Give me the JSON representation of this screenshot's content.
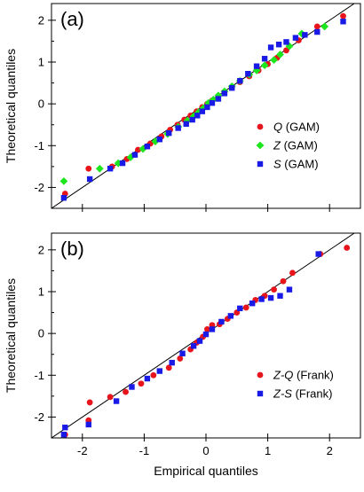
{
  "chart_data": [
    {
      "type": "scatter",
      "panel": "(a)",
      "xlabel": "",
      "ylabel": "Theoretical quantiles",
      "xlim": [
        -2.5,
        2.5
      ],
      "ylim": [
        -2.5,
        2.4
      ],
      "x_ticks": [],
      "y_ticks": [
        "-2",
        "-1",
        "0",
        "1",
        "2"
      ],
      "reference_line": "y = x",
      "legend_position": "lower-right",
      "series": [
        {
          "name": "Q",
          "suffix": " (GAM)",
          "color": "#e8141c",
          "marker": "circle",
          "x": [
            -2.28,
            -1.9,
            -1.52,
            -1.28,
            -1.1,
            -0.9,
            -0.72,
            -0.58,
            -0.46,
            -0.35,
            -0.25,
            -0.15,
            -0.06,
            0.02,
            0.1,
            0.2,
            0.3,
            0.42,
            0.55,
            0.7,
            0.85,
            1.0,
            1.15,
            1.3,
            1.5,
            1.8,
            2.22
          ],
          "y": [
            -2.15,
            -1.55,
            -1.5,
            -1.32,
            -1.1,
            -0.95,
            -0.78,
            -0.62,
            -0.5,
            -0.38,
            -0.28,
            -0.18,
            -0.08,
            0.0,
            0.08,
            0.18,
            0.28,
            0.4,
            0.52,
            0.66,
            0.8,
            0.95,
            1.1,
            1.28,
            1.52,
            1.85,
            2.1
          ]
        },
        {
          "name": "Z",
          "suffix": " (GAM)",
          "color": "#1ee61e",
          "marker": "diamond",
          "x": [
            -2.3,
            -1.72,
            -1.42,
            -1.22,
            -1.02,
            -0.82,
            -0.62,
            -0.45,
            -0.3,
            -0.2,
            -0.12,
            -0.04,
            0.04,
            0.12,
            0.2,
            0.3,
            0.42,
            0.55,
            0.7,
            0.82,
            0.95,
            1.1,
            1.2,
            1.35,
            1.55,
            1.92
          ],
          "y": [
            -1.85,
            -1.55,
            -1.42,
            -1.28,
            -1.08,
            -0.9,
            -0.72,
            -0.55,
            -0.4,
            -0.3,
            -0.2,
            -0.1,
            0.02,
            0.1,
            0.2,
            0.3,
            0.42,
            0.55,
            0.7,
            0.8,
            0.92,
            1.05,
            1.18,
            1.38,
            1.68,
            1.85
          ]
        },
        {
          "name": "S",
          "suffix": " (GAM)",
          "color": "#1a1ae6",
          "marker": "square",
          "x": [
            -2.3,
            -1.88,
            -1.55,
            -1.35,
            -1.15,
            -0.95,
            -0.75,
            -0.6,
            -0.45,
            -0.32,
            -0.22,
            -0.14,
            -0.06,
            0.02,
            0.1,
            0.2,
            0.3,
            0.42,
            0.55,
            0.68,
            0.82,
            0.95,
            1.05,
            1.18,
            1.3,
            1.45,
            1.6,
            1.8,
            2.22
          ],
          "y": [
            -2.25,
            -1.8,
            -1.55,
            -1.42,
            -1.22,
            -1.02,
            -0.85,
            -0.7,
            -0.58,
            -0.48,
            -0.38,
            -0.28,
            -0.18,
            -0.08,
            0.02,
            0.12,
            0.25,
            0.38,
            0.55,
            0.72,
            0.9,
            1.08,
            1.35,
            1.42,
            1.48,
            1.58,
            1.65,
            1.72,
            1.97
          ]
        }
      ]
    },
    {
      "type": "scatter",
      "panel": "(b)",
      "xlabel": "Empirical quantiles",
      "ylabel": "Theoretical quantiles",
      "xlim": [
        -2.5,
        2.5
      ],
      "ylim": [
        -2.5,
        2.4
      ],
      "x_ticks": [
        "-2",
        "-1",
        "0",
        "1",
        "2"
      ],
      "y_ticks": [
        "-2",
        "-1",
        "0",
        "1",
        "2"
      ],
      "reference_line": "y = x",
      "legend_position": "lower-right",
      "series": [
        {
          "name": "Z-Q",
          "suffix": " (Frank)",
          "color": "#e8141c",
          "marker": "circle",
          "x": [
            -2.28,
            -1.9,
            -1.88,
            -1.55,
            -1.3,
            -1.05,
            -0.85,
            -0.6,
            -0.42,
            -0.25,
            -0.15,
            -0.05,
            0.02,
            0.1,
            0.22,
            0.35,
            0.5,
            0.65,
            0.8,
            0.95,
            1.1,
            1.25,
            1.4,
            1.85,
            2.28
          ],
          "y": [
            -2.42,
            -2.08,
            -1.65,
            -1.52,
            -1.4,
            -1.2,
            -1.0,
            -0.82,
            -0.6,
            -0.38,
            -0.22,
            -0.08,
            0.1,
            0.2,
            0.22,
            0.35,
            0.5,
            0.62,
            0.8,
            0.9,
            1.05,
            1.25,
            1.45,
            1.9,
            2.05
          ]
        },
        {
          "name": "Z-S",
          "suffix": " (Frank)",
          "color": "#1a1ae6",
          "marker": "square",
          "x": [
            -2.3,
            -2.28,
            -1.9,
            -1.45,
            -1.2,
            -0.95,
            -0.75,
            -0.55,
            -0.38,
            -0.2,
            -0.1,
            0.0,
            0.1,
            0.25,
            0.4,
            0.55,
            0.75,
            0.9,
            1.05,
            1.2,
            1.35,
            1.82
          ],
          "y": [
            -2.42,
            -2.25,
            -2.18,
            -1.62,
            -1.28,
            -1.08,
            -0.9,
            -0.7,
            -0.48,
            -0.3,
            -0.18,
            -0.02,
            0.1,
            0.28,
            0.42,
            0.6,
            0.72,
            0.82,
            0.85,
            0.9,
            1.05,
            1.9
          ]
        }
      ]
    }
  ]
}
